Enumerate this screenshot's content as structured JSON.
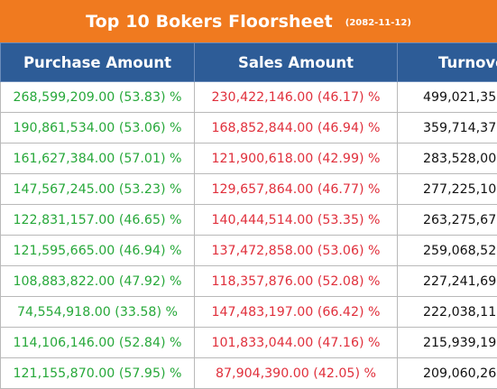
{
  "title": "Top 10 Bokers Floorsheet",
  "date": "(2082-11-12)",
  "headers": {
    "purchase": "Purchase Amount",
    "sales": "Sales Amount",
    "turnover": "Turnove"
  },
  "colors": {
    "title_bg": "#f07a1f",
    "header_bg": "#2d5c97",
    "purchase_text": "#27a83a",
    "sales_text": "#e0303c"
  },
  "rows": [
    {
      "purchase": "268,599,209.00 (53.83) %",
      "sales": "230,422,146.00 (46.17) %",
      "turnover": "499,021,35"
    },
    {
      "purchase": "190,861,534.00 (53.06) %",
      "sales": "168,852,844.00 (46.94) %",
      "turnover": "359,714,37"
    },
    {
      "purchase": "161,627,384.00 (57.01) %",
      "sales": "121,900,618.00 (42.99) %",
      "turnover": "283,528,00"
    },
    {
      "purchase": "147,567,245.00 (53.23) %",
      "sales": "129,657,864.00 (46.77) %",
      "turnover": "277,225,10"
    },
    {
      "purchase": "122,831,157.00 (46.65) %",
      "sales": "140,444,514.00 (53.35) %",
      "turnover": "263,275,67"
    },
    {
      "purchase": "121,595,665.00 (46.94) %",
      "sales": "137,472,858.00 (53.06) %",
      "turnover": "259,068,52"
    },
    {
      "purchase": "108,883,822.00 (47.92) %",
      "sales": "118,357,876.00 (52.08) %",
      "turnover": "227,241,69"
    },
    {
      "purchase": "74,554,918.00 (33.58) %",
      "sales": "147,483,197.00 (66.42) %",
      "turnover": "222,038,11"
    },
    {
      "purchase": "114,106,146.00 (52.84) %",
      "sales": "101,833,044.00 (47.16) %",
      "turnover": "215,939,19"
    },
    {
      "purchase": "121,155,870.00 (57.95) %",
      "sales": "87,904,390.00 (42.05) %",
      "turnover": "209,060,26"
    }
  ]
}
